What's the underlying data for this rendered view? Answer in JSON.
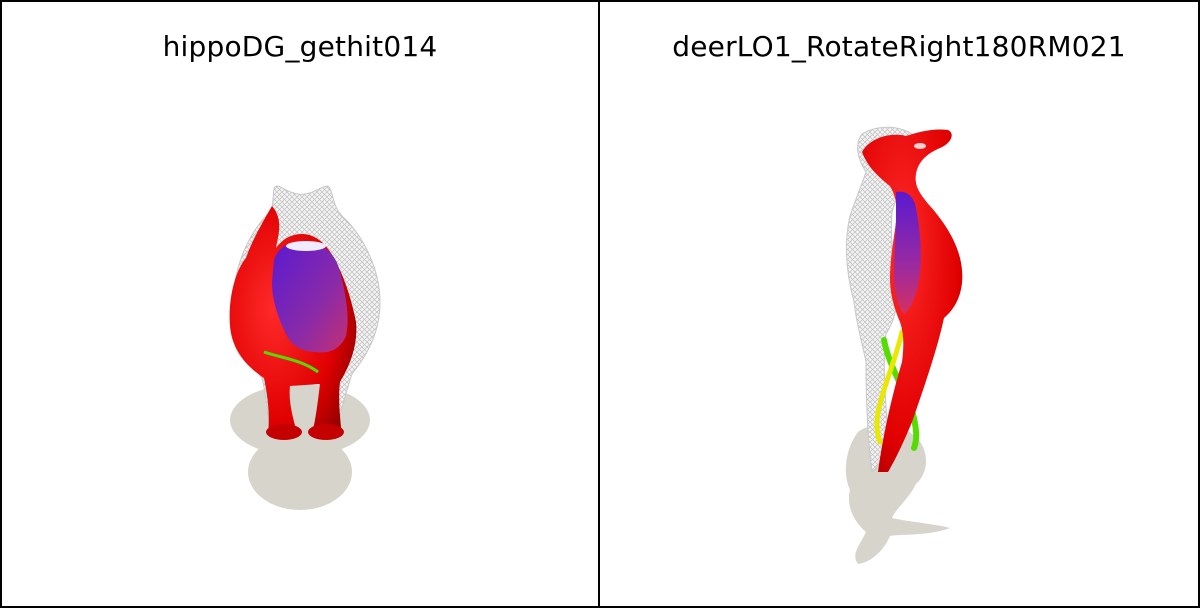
{
  "panels": [
    {
      "title": "hippoDG_gethit014"
    },
    {
      "title": "deerLO1_RotateRight180RM021"
    }
  ],
  "colors": {
    "mesh_wireframe": "#cfcfcf",
    "surface_primary": "#e00000",
    "surface_interior": "#6a1fb0",
    "shadow": "#d6d3cc",
    "limb_green": "#55dd00",
    "limb_yellow": "#e8e800"
  }
}
